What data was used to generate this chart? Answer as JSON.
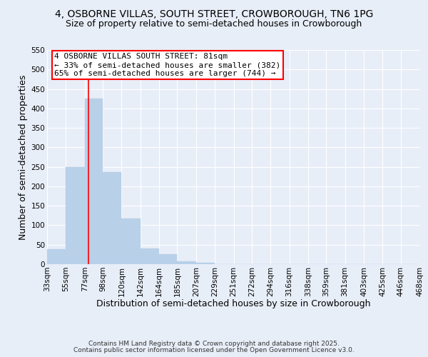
{
  "title": "4, OSBORNE VILLAS, SOUTH STREET, CROWBOROUGH, TN6 1PG",
  "subtitle": "Size of property relative to semi-detached houses in Crowborough",
  "xlabel": "Distribution of semi-detached houses by size in Crowborough",
  "ylabel": "Number of semi-detached properties",
  "bar_edges": [
    33,
    55,
    77,
    98,
    120,
    142,
    164,
    185,
    207,
    229,
    251,
    272,
    294,
    316,
    338,
    359,
    381,
    403,
    425,
    446,
    468
  ],
  "bar_heights": [
    38,
    250,
    425,
    237,
    118,
    40,
    25,
    8,
    4,
    0,
    0,
    0,
    0,
    0,
    0,
    0,
    0,
    0,
    0,
    0
  ],
  "bar_color": "#b8d0e8",
  "bar_edgecolor": "#b8d0e8",
  "property_line_x": 81,
  "property_line_color": "red",
  "annotation_title": "4 OSBORNE VILLAS SOUTH STREET: 81sqm",
  "annotation_line1": "← 33% of semi-detached houses are smaller (382)",
  "annotation_line2": "65% of semi-detached houses are larger (744) →",
  "annotation_box_color": "white",
  "annotation_box_edgecolor": "red",
  "ylim": [
    0,
    550
  ],
  "yticks": [
    0,
    50,
    100,
    150,
    200,
    250,
    300,
    350,
    400,
    450,
    500,
    550
  ],
  "tick_labels": [
    "33sqm",
    "55sqm",
    "77sqm",
    "98sqm",
    "120sqm",
    "142sqm",
    "164sqm",
    "185sqm",
    "207sqm",
    "229sqm",
    "251sqm",
    "272sqm",
    "294sqm",
    "316sqm",
    "338sqm",
    "359sqm",
    "381sqm",
    "403sqm",
    "425sqm",
    "446sqm",
    "468sqm"
  ],
  "footer1": "Contains HM Land Registry data © Crown copyright and database right 2025.",
  "footer2": "Contains public sector information licensed under the Open Government Licence v3.0.",
  "background_color": "#e8eef8",
  "plot_bg_color": "#e8eef8",
  "grid_color": "white",
  "title_fontsize": 10,
  "subtitle_fontsize": 9,
  "axis_label_fontsize": 9,
  "tick_fontsize": 7.5,
  "annotation_fontsize": 8,
  "footer_fontsize": 6.5
}
